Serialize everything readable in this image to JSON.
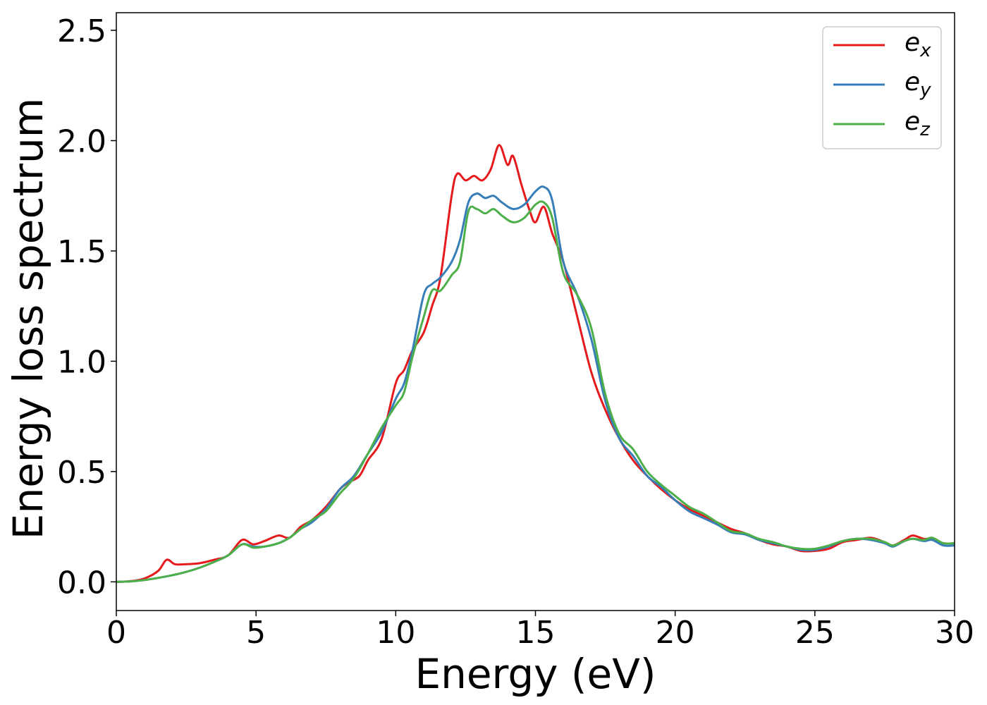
{
  "chart_data": {
    "type": "line",
    "title": "",
    "xlabel": "Energy (eV)",
    "ylabel": "Energy loss spectrum",
    "xlim": [
      0,
      30
    ],
    "ylim": [
      -0.13,
      2.58
    ],
    "xticks": [
      0,
      5,
      10,
      15,
      20,
      25,
      30
    ],
    "xtick_labels": [
      "0",
      "5",
      "10",
      "15",
      "20",
      "25",
      "30"
    ],
    "yticks": [
      0.0,
      0.5,
      1.0,
      1.5,
      2.0,
      2.5
    ],
    "ytick_labels": [
      "0.0",
      "0.5",
      "1.0",
      "1.5",
      "2.0",
      "2.5"
    ],
    "grid": false,
    "legend_position": "top-right",
    "series": [
      {
        "name": "e_x",
        "label_base": "e",
        "label_sub": "x",
        "color": "#e41a1c",
        "points": [
          [
            0,
            0
          ],
          [
            0.5,
            0.003
          ],
          [
            1.0,
            0.015
          ],
          [
            1.5,
            0.05
          ],
          [
            1.8,
            0.1
          ],
          [
            2.1,
            0.08
          ],
          [
            2.5,
            0.08
          ],
          [
            3.0,
            0.085
          ],
          [
            3.5,
            0.1
          ],
          [
            4.0,
            0.12
          ],
          [
            4.5,
            0.19
          ],
          [
            4.9,
            0.17
          ],
          [
            5.3,
            0.185
          ],
          [
            5.8,
            0.21
          ],
          [
            6.2,
            0.2
          ],
          [
            6.6,
            0.25
          ],
          [
            7.0,
            0.28
          ],
          [
            7.5,
            0.34
          ],
          [
            8.0,
            0.42
          ],
          [
            8.3,
            0.45
          ],
          [
            8.7,
            0.48
          ],
          [
            9.0,
            0.55
          ],
          [
            9.5,
            0.65
          ],
          [
            10.0,
            0.9
          ],
          [
            10.3,
            0.96
          ],
          [
            10.6,
            1.05
          ],
          [
            11.0,
            1.13
          ],
          [
            11.3,
            1.25
          ],
          [
            11.6,
            1.38
          ],
          [
            12.0,
            1.75
          ],
          [
            12.2,
            1.85
          ],
          [
            12.5,
            1.82
          ],
          [
            12.8,
            1.84
          ],
          [
            13.1,
            1.82
          ],
          [
            13.4,
            1.87
          ],
          [
            13.7,
            1.98
          ],
          [
            14.0,
            1.89
          ],
          [
            14.2,
            1.93
          ],
          [
            14.5,
            1.8
          ],
          [
            14.8,
            1.68
          ],
          [
            15.0,
            1.63
          ],
          [
            15.3,
            1.7
          ],
          [
            15.6,
            1.58
          ],
          [
            16.0,
            1.45
          ],
          [
            16.5,
            1.2
          ],
          [
            17.0,
            0.95
          ],
          [
            17.5,
            0.78
          ],
          [
            18.0,
            0.65
          ],
          [
            18.5,
            0.55
          ],
          [
            19.0,
            0.48
          ],
          [
            19.5,
            0.42
          ],
          [
            20.0,
            0.37
          ],
          [
            20.5,
            0.33
          ],
          [
            21.0,
            0.3
          ],
          [
            21.5,
            0.27
          ],
          [
            22.0,
            0.24
          ],
          [
            22.5,
            0.22
          ],
          [
            23.0,
            0.19
          ],
          [
            23.5,
            0.17
          ],
          [
            24.0,
            0.16
          ],
          [
            24.5,
            0.14
          ],
          [
            25.0,
            0.14
          ],
          [
            25.5,
            0.15
          ],
          [
            26.0,
            0.18
          ],
          [
            26.5,
            0.19
          ],
          [
            27.0,
            0.2
          ],
          [
            27.5,
            0.18
          ],
          [
            27.8,
            0.165
          ],
          [
            28.2,
            0.19
          ],
          [
            28.5,
            0.21
          ],
          [
            28.9,
            0.195
          ],
          [
            29.2,
            0.195
          ],
          [
            29.6,
            0.175
          ],
          [
            30,
            0.175
          ]
        ]
      },
      {
        "name": "e_y",
        "label_base": "e",
        "label_sub": "y",
        "color": "#377eb8",
        "points": [
          [
            0,
            0
          ],
          [
            0.5,
            0.002
          ],
          [
            1.0,
            0.008
          ],
          [
            1.5,
            0.018
          ],
          [
            2.0,
            0.03
          ],
          [
            2.5,
            0.045
          ],
          [
            3.0,
            0.065
          ],
          [
            3.5,
            0.09
          ],
          [
            4.0,
            0.12
          ],
          [
            4.5,
            0.17
          ],
          [
            4.9,
            0.16
          ],
          [
            5.3,
            0.16
          ],
          [
            5.8,
            0.175
          ],
          [
            6.2,
            0.2
          ],
          [
            6.6,
            0.24
          ],
          [
            7.0,
            0.27
          ],
          [
            7.5,
            0.33
          ],
          [
            8.0,
            0.42
          ],
          [
            8.5,
            0.48
          ],
          [
            9.0,
            0.58
          ],
          [
            9.5,
            0.68
          ],
          [
            10.0,
            0.83
          ],
          [
            10.3,
            0.9
          ],
          [
            10.6,
            1.05
          ],
          [
            11.0,
            1.3
          ],
          [
            11.3,
            1.35
          ],
          [
            11.6,
            1.38
          ],
          [
            12.0,
            1.45
          ],
          [
            12.3,
            1.55
          ],
          [
            12.6,
            1.72
          ],
          [
            12.9,
            1.76
          ],
          [
            13.2,
            1.74
          ],
          [
            13.5,
            1.75
          ],
          [
            13.8,
            1.72
          ],
          [
            14.2,
            1.69
          ],
          [
            14.6,
            1.71
          ],
          [
            15.0,
            1.77
          ],
          [
            15.3,
            1.79
          ],
          [
            15.6,
            1.73
          ],
          [
            16.0,
            1.45
          ],
          [
            16.5,
            1.3
          ],
          [
            17.0,
            1.1
          ],
          [
            17.5,
            0.82
          ],
          [
            18.0,
            0.65
          ],
          [
            18.5,
            0.57
          ],
          [
            19.0,
            0.48
          ],
          [
            19.5,
            0.43
          ],
          [
            20.0,
            0.37
          ],
          [
            20.5,
            0.32
          ],
          [
            21.0,
            0.29
          ],
          [
            21.5,
            0.26
          ],
          [
            22.0,
            0.225
          ],
          [
            22.5,
            0.215
          ],
          [
            23.0,
            0.19
          ],
          [
            23.5,
            0.175
          ],
          [
            24.0,
            0.16
          ],
          [
            24.5,
            0.145
          ],
          [
            25.0,
            0.145
          ],
          [
            25.5,
            0.16
          ],
          [
            26.0,
            0.185
          ],
          [
            26.5,
            0.195
          ],
          [
            27.0,
            0.19
          ],
          [
            27.5,
            0.175
          ],
          [
            27.8,
            0.16
          ],
          [
            28.2,
            0.185
          ],
          [
            28.5,
            0.195
          ],
          [
            28.9,
            0.185
          ],
          [
            29.2,
            0.19
          ],
          [
            29.6,
            0.165
          ],
          [
            30,
            0.165
          ]
        ]
      },
      {
        "name": "e_z",
        "label_base": "e",
        "label_sub": "z",
        "color": "#4daf4a",
        "points": [
          [
            0,
            0
          ],
          [
            0.5,
            0.002
          ],
          [
            1.0,
            0.008
          ],
          [
            1.5,
            0.018
          ],
          [
            2.0,
            0.03
          ],
          [
            2.5,
            0.045
          ],
          [
            3.0,
            0.065
          ],
          [
            3.5,
            0.09
          ],
          [
            4.0,
            0.12
          ],
          [
            4.5,
            0.17
          ],
          [
            4.9,
            0.155
          ],
          [
            5.3,
            0.16
          ],
          [
            5.8,
            0.175
          ],
          [
            6.2,
            0.2
          ],
          [
            6.6,
            0.24
          ],
          [
            7.0,
            0.28
          ],
          [
            7.5,
            0.32
          ],
          [
            8.0,
            0.4
          ],
          [
            8.5,
            0.47
          ],
          [
            9.0,
            0.58
          ],
          [
            9.5,
            0.7
          ],
          [
            10.0,
            0.8
          ],
          [
            10.3,
            0.86
          ],
          [
            10.6,
            1.02
          ],
          [
            11.0,
            1.2
          ],
          [
            11.3,
            1.32
          ],
          [
            11.6,
            1.32
          ],
          [
            12.0,
            1.39
          ],
          [
            12.3,
            1.45
          ],
          [
            12.6,
            1.68
          ],
          [
            12.9,
            1.69
          ],
          [
            13.2,
            1.67
          ],
          [
            13.5,
            1.69
          ],
          [
            13.8,
            1.66
          ],
          [
            14.2,
            1.63
          ],
          [
            14.6,
            1.65
          ],
          [
            15.0,
            1.71
          ],
          [
            15.3,
            1.72
          ],
          [
            15.6,
            1.65
          ],
          [
            16.0,
            1.4
          ],
          [
            16.5,
            1.3
          ],
          [
            17.0,
            1.15
          ],
          [
            17.5,
            0.85
          ],
          [
            18.0,
            0.67
          ],
          [
            18.5,
            0.6
          ],
          [
            19.0,
            0.5
          ],
          [
            19.5,
            0.44
          ],
          [
            20.0,
            0.39
          ],
          [
            20.5,
            0.34
          ],
          [
            21.0,
            0.31
          ],
          [
            21.5,
            0.27
          ],
          [
            22.0,
            0.23
          ],
          [
            22.5,
            0.22
          ],
          [
            23.0,
            0.195
          ],
          [
            23.5,
            0.18
          ],
          [
            24.0,
            0.16
          ],
          [
            24.5,
            0.15
          ],
          [
            25.0,
            0.15
          ],
          [
            25.5,
            0.165
          ],
          [
            26.0,
            0.185
          ],
          [
            26.5,
            0.195
          ],
          [
            27.0,
            0.195
          ],
          [
            27.5,
            0.18
          ],
          [
            27.8,
            0.165
          ],
          [
            28.2,
            0.185
          ],
          [
            28.5,
            0.195
          ],
          [
            28.9,
            0.19
          ],
          [
            29.2,
            0.2
          ],
          [
            29.6,
            0.175
          ],
          [
            30,
            0.175
          ]
        ]
      }
    ]
  }
}
